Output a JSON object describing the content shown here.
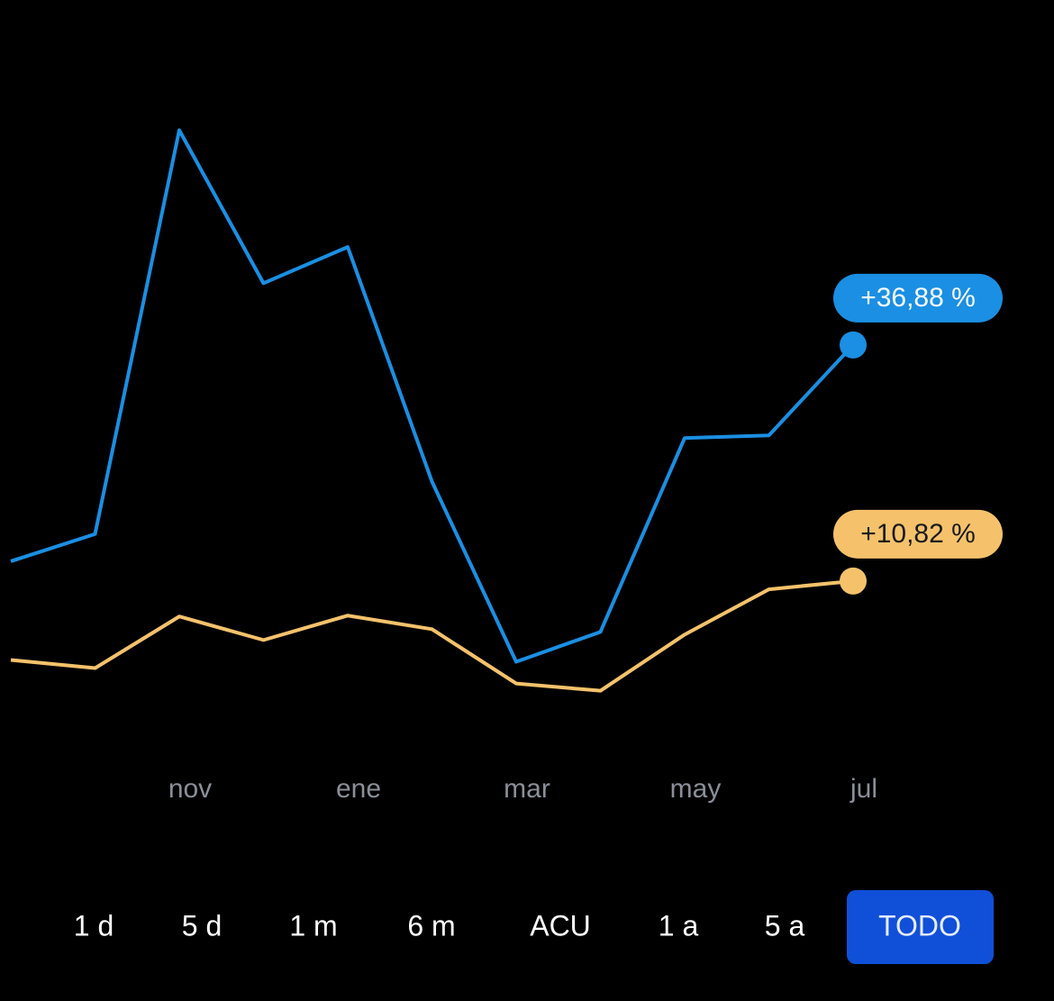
{
  "chart_data": {
    "type": "line",
    "categories": [
      null,
      null,
      "nov",
      null,
      "ene",
      null,
      "mar",
      null,
      "may",
      null,
      "jul"
    ],
    "series": [
      {
        "color": "#1a8fe3",
        "values": [
          13.0,
          16.0,
          60.6,
          43.7,
          47.7,
          21.8,
          1.9,
          5.2,
          26.6,
          26.9,
          36.88
        ],
        "end_label": "+36,88 %"
      },
      {
        "color": "#f5c26b",
        "values": [
          2.1,
          1.2,
          6.9,
          4.3,
          7.0,
          5.5,
          -0.5,
          -1.3,
          4.9,
          9.9,
          10.82
        ],
        "end_label": "+10,82 %"
      }
    ],
    "ylim": [
      -8,
      70
    ]
  },
  "range_options": [
    "1 d",
    "5 d",
    "1 m",
    "6 m",
    "ACU",
    "1 a",
    "5 a",
    "TODO"
  ],
  "selected_option": 7
}
